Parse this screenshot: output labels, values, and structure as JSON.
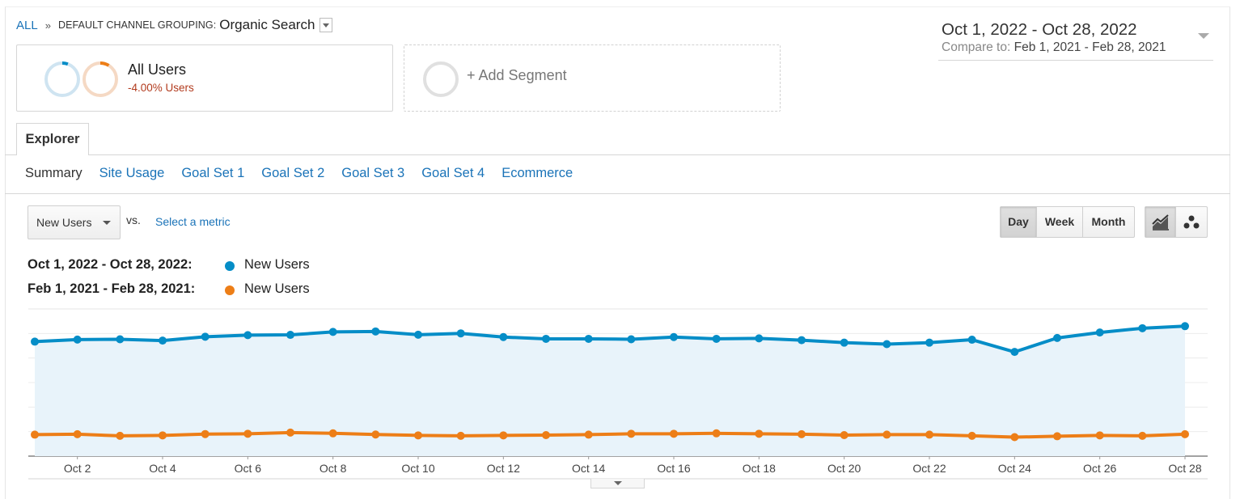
{
  "breadcrumb": {
    "all_label": "ALL",
    "separator": "»",
    "dimension_label": "DEFAULT CHANNEL GROUPING:",
    "dimension_value": "Organic Search"
  },
  "segments": {
    "all_users": {
      "title": "All Users",
      "subtitle": "-4.00% Users"
    },
    "add_segment": {
      "label": "+ Add Segment"
    }
  },
  "date_range": {
    "main": "Oct 1, 2022 - Oct 28, 2022",
    "compare_label": "Compare to:",
    "compare_value": "Feb 1, 2021 - Feb 28, 2021"
  },
  "tabs": {
    "explorer": "Explorer"
  },
  "subnav": [
    "Summary",
    "Site Usage",
    "Goal Set 1",
    "Goal Set 2",
    "Goal Set 3",
    "Goal Set 4",
    "Ecommerce"
  ],
  "controls": {
    "metric_select": "New Users",
    "vs_label": "vs.",
    "select_metric": "Select a metric",
    "period": {
      "day": "Day",
      "week": "Week",
      "month": "Month"
    },
    "line_chart_icon": "line-chart-icon",
    "motion_chart_icon": "motion-chart-icon"
  },
  "legend": [
    {
      "range": "Oct 1, 2022 - Oct 28, 2022:",
      "metric": "New Users",
      "color": "#058dc7"
    },
    {
      "range": "Feb 1, 2021 - Feb 28, 2021:",
      "metric": "New Users",
      "color": "#ed7e17"
    }
  ],
  "chart_data": {
    "type": "area",
    "categories": [
      "Oct 1",
      "Oct 2",
      "Oct 3",
      "Oct 4",
      "Oct 5",
      "Oct 6",
      "Oct 7",
      "Oct 8",
      "Oct 9",
      "Oct 10",
      "Oct 11",
      "Oct 12",
      "Oct 13",
      "Oct 14",
      "Oct 15",
      "Oct 16",
      "Oct 17",
      "Oct 18",
      "Oct 19",
      "Oct 20",
      "Oct 21",
      "Oct 22",
      "Oct 23",
      "Oct 24",
      "Oct 25",
      "Oct 26",
      "Oct 27",
      "Oct 28"
    ],
    "tick_labels": [
      "Oct 2",
      "Oct 4",
      "Oct 6",
      "Oct 8",
      "Oct 10",
      "Oct 12",
      "Oct 14",
      "Oct 16",
      "Oct 18",
      "Oct 20",
      "Oct 22",
      "Oct 24",
      "Oct 26",
      "Oct 28"
    ],
    "series": [
      {
        "name": "New Users",
        "period": "Oct 1, 2022 - Oct 28, 2022",
        "color": "#058dc7",
        "fill": "#e8f3fa",
        "values": [
          0.778,
          0.792,
          0.794,
          0.785,
          0.811,
          0.822,
          0.824,
          0.844,
          0.847,
          0.825,
          0.834,
          0.809,
          0.797,
          0.797,
          0.794,
          0.809,
          0.797,
          0.8,
          0.788,
          0.771,
          0.761,
          0.771,
          0.791,
          0.708,
          0.803,
          0.84,
          0.869,
          0.883
        ]
      },
      {
        "name": "New Users",
        "period": "Feb 1, 2021 - Feb 28, 2021",
        "color": "#ed7e17",
        "values": [
          0.146,
          0.149,
          0.138,
          0.141,
          0.15,
          0.152,
          0.16,
          0.155,
          0.147,
          0.141,
          0.138,
          0.141,
          0.143,
          0.146,
          0.152,
          0.152,
          0.155,
          0.152,
          0.149,
          0.143,
          0.146,
          0.146,
          0.138,
          0.129,
          0.135,
          0.141,
          0.138,
          0.149
        ]
      }
    ],
    "ylim": [
      0,
      1
    ],
    "grid": true,
    "legend": "top-left"
  }
}
